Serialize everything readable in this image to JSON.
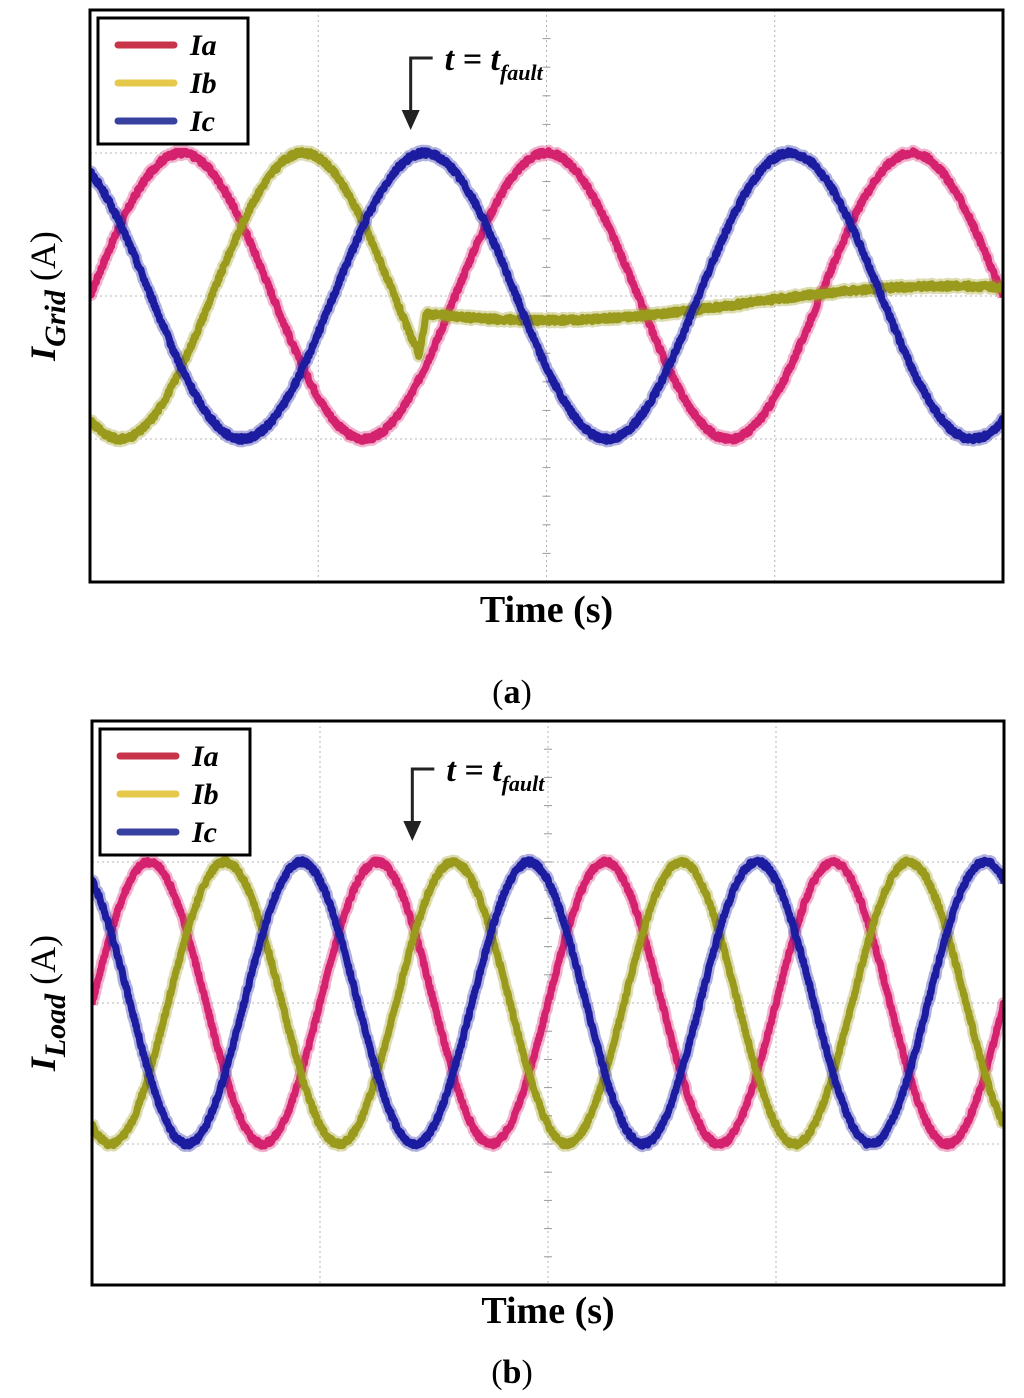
{
  "colors": {
    "Ia": "#d5226e",
    "Ib": "#9a9a1c",
    "Ic": "#1c1ca0"
  },
  "legend_colors": {
    "Ia": "#c8344a",
    "Ib": "#e6c84a",
    "Ic": "#3840a0"
  },
  "chart_data": [
    {
      "type": "line",
      "xlabel": "Time (s)",
      "ylabel_main": "I",
      "ylabel_sub": "Grid",
      "ylabel_unit": "(A)",
      "caption_letter": "a",
      "annotation": {
        "text_main": "t = t",
        "text_sub": "fault",
        "x": 3.6
      },
      "xlim": [
        0,
        10
      ],
      "ylim": [
        -2,
        2
      ],
      "grid": true,
      "legend_position": "top-left",
      "periods": 2.5,
      "amplitude": 1,
      "fault_x": 3.6,
      "series": [
        {
          "name": "Ia",
          "phase_deg": 0,
          "post_fault": "sinusoid"
        },
        {
          "name": "Ib",
          "phase_deg": -120,
          "post_fault": "near-zero"
        },
        {
          "name": "Ic",
          "phase_deg": 120,
          "post_fault": "sinusoid"
        }
      ]
    },
    {
      "type": "line",
      "xlabel": "Time (s)",
      "ylabel_main": "I",
      "ylabel_sub": "Load",
      "ylabel_unit": "(A)",
      "caption_letter": "b",
      "annotation": {
        "text_main": "t = t",
        "text_sub": "fault",
        "x": 3.6
      },
      "xlim": [
        0,
        10
      ],
      "ylim": [
        -2,
        2
      ],
      "grid": true,
      "legend_position": "top-left",
      "periods": 4,
      "amplitude": 1,
      "fault_x": 3.6,
      "series": [
        {
          "name": "Ia",
          "phase_deg": 0,
          "post_fault": "sinusoid"
        },
        {
          "name": "Ib",
          "phase_deg": -120,
          "post_fault": "sinusoid"
        },
        {
          "name": "Ic",
          "phase_deg": 120,
          "post_fault": "sinusoid"
        }
      ]
    }
  ]
}
